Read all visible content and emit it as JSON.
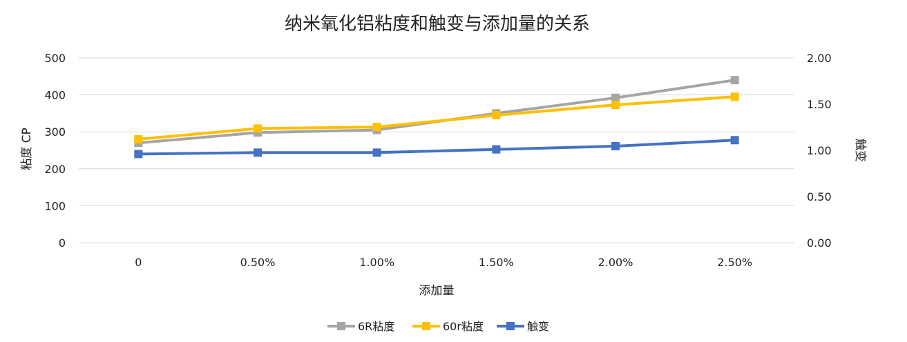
{
  "chart_data": {
    "type": "line",
    "title": "纳米氧化铝粘度和触变与添加量的关系",
    "xlabel": "添加量",
    "ylabel_left": "粘度 CP",
    "ylabel_right": "触变",
    "categories": [
      "0",
      "0.50%",
      "1.00%",
      "1.50%",
      "2.00%",
      "2.50%"
    ],
    "y_left": {
      "min": 0,
      "max": 500,
      "ticks": [
        "0",
        "100",
        "200",
        "300",
        "400",
        "500"
      ]
    },
    "y_right": {
      "min": 0,
      "max": 2,
      "ticks": [
        "0.00",
        "0.50",
        "1.00",
        "1.50",
        "2.00"
      ]
    },
    "grid": true,
    "legend_position": "bottom",
    "series": [
      {
        "name": "6R粘度",
        "axis": "left",
        "color": "#A5A5A5",
        "values": [
          270,
          298,
          305,
          350,
          392,
          440
        ]
      },
      {
        "name": "60r粘度",
        "axis": "left",
        "color": "#FFC000",
        "values": [
          280,
          309,
          313,
          345,
          373,
          395
        ]
      },
      {
        "name": "触变",
        "axis": "right",
        "color": "#4472C4",
        "values": [
          0.96,
          0.975,
          0.975,
          1.01,
          1.045,
          1.11
        ]
      }
    ]
  }
}
